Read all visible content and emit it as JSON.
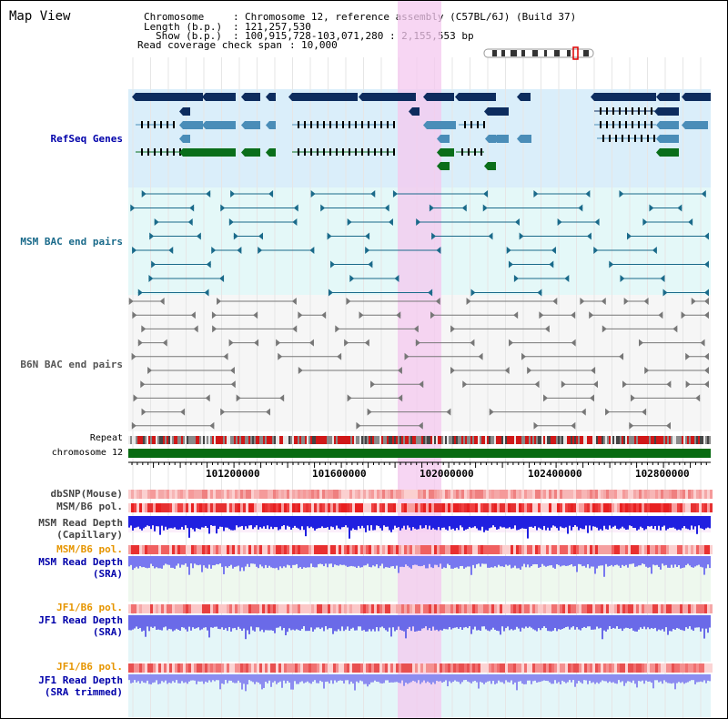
{
  "header": {
    "title": "Map View",
    "chromosome_label": "Chromosome",
    "chromosome_value": "Chromosome 12, reference assembly (C57BL/6J) (Build 37)",
    "length_label": "Length (b.p.)",
    "length_value": "121,257,530",
    "show_label": "Show (b.p.)",
    "show_value": "100,915,728-103,071,280 : 2,155,553 bp",
    "coverage_label": "Read coverage check span",
    "coverage_value": "10,000"
  },
  "tracks": {
    "refseq": "RefSeq Genes",
    "msm_bac": "MSM BAC end pairs",
    "b6n_bac": "B6N BAC end pairs",
    "repeat": "Repeat",
    "chromosome": "chromosome 12",
    "dbsnp": "dbSNP(Mouse)",
    "msm_b6_pol_1": "MSM/B6 pol.",
    "msm_depth_cap_1": "MSM Read Depth",
    "msm_depth_cap_2": "(Capillary)",
    "msm_b6_pol_2": "MSM/B6 pol.",
    "msm_depth_sra_1": "MSM Read Depth",
    "msm_depth_sra_2": "(SRA)",
    "jf1_b6_pol_1": "JF1/B6 pol.",
    "jf1_depth_sra_1": "JF1 Read Depth",
    "jf1_depth_sra_2": "(SRA)",
    "jf1_b6_pol_2": "JF1/B6 pol.",
    "jf1_depth_trim_1": "JF1 Read Depth",
    "jf1_depth_trim_2": "(SRA trimmed)"
  },
  "axis": {
    "ticks": [
      "101200000",
      "101600000",
      "102000000",
      "102400000",
      "102800000"
    ]
  },
  "colors": {
    "refseq_bg": "#daeefa",
    "bac_bg": "#e4f8f8",
    "highlight": "#f4c8ef",
    "gene_navy": "#0d2c5e",
    "gene_steel": "#4a8db8",
    "gene_green": "#0a6e1a",
    "msm_color": "#1a6a8a",
    "b6n_color": "#777777",
    "chrom_green": "#086b12",
    "label_blue": "#0000aa",
    "label_gray": "#444444",
    "label_orange": "#e69500"
  }
}
